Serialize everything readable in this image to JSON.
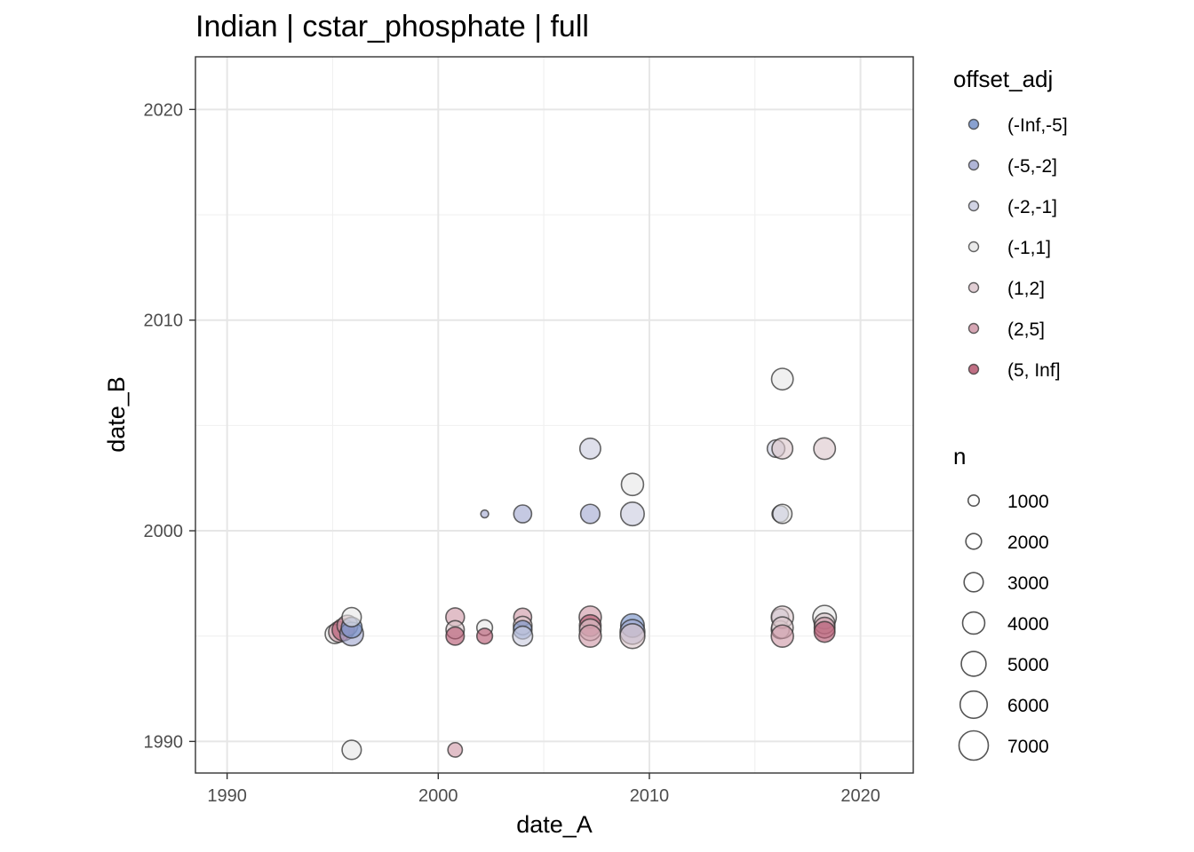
{
  "chart_data": {
    "type": "scatter",
    "title": "Indian | cstar_phosphate | full",
    "xlabel": "date_A",
    "ylabel": "date_B",
    "xlim": [
      1988.5,
      2022.5
    ],
    "ylim": [
      1988.5,
      2022.5
    ],
    "x_ticks": [
      1990,
      2000,
      2010,
      2020
    ],
    "y_ticks": [
      1990,
      2000,
      2010,
      2020
    ],
    "x_tick_labels": [
      "1990",
      "2000",
      "2010",
      "2020"
    ],
    "y_tick_labels": [
      "1990",
      "2000",
      "2010",
      "2020"
    ],
    "grid": true,
    "legend_position": "right",
    "color_legend": {
      "title": "offset_adj",
      "entries": [
        {
          "label": "(-Inf,-5]",
          "color": "#7490c8"
        },
        {
          "label": "(-5,-2]",
          "color": "#a2a8d0"
        },
        {
          "label": "(-2,-1]",
          "color": "#c9cbdf"
        },
        {
          "label": "(-1,1]",
          "color": "#e6e6e6"
        },
        {
          "label": "(1,2]",
          "color": "#dcc6cc"
        },
        {
          "label": "(2,5]",
          "color": "#cf97a7"
        },
        {
          "label": "(5, Inf]",
          "color": "#b5566f"
        }
      ]
    },
    "size_legend": {
      "title": "n",
      "entries": [
        {
          "label": "1000",
          "value": 1000
        },
        {
          "label": "2000",
          "value": 2000
        },
        {
          "label": "3000",
          "value": 3000
        },
        {
          "label": "4000",
          "value": 4000
        },
        {
          "label": "5000",
          "value": 5000
        },
        {
          "label": "6000",
          "value": 6000
        },
        {
          "label": "7000",
          "value": 7000
        }
      ]
    },
    "points": [
      {
        "x": 1995.1,
        "y": 1995.1,
        "n": 3000,
        "offset": "(-1,1]"
      },
      {
        "x": 1995.3,
        "y": 1995.2,
        "n": 3500,
        "offset": "(2,5]"
      },
      {
        "x": 1995.5,
        "y": 1995.3,
        "n": 4000,
        "offset": "(5, Inf]"
      },
      {
        "x": 1995.7,
        "y": 1995.5,
        "n": 3500,
        "offset": "(2,5]"
      },
      {
        "x": 1995.9,
        "y": 1995.1,
        "n": 4500,
        "offset": "(-5,-2]"
      },
      {
        "x": 1995.9,
        "y": 1995.4,
        "n": 3500,
        "offset": "(-Inf,-5]"
      },
      {
        "x": 1995.9,
        "y": 1995.9,
        "n": 3000,
        "offset": "(-1,1]"
      },
      {
        "x": 1995.9,
        "y": 1989.6,
        "n": 3000,
        "offset": "(-1,1]"
      },
      {
        "x": 2000.8,
        "y": 1995.9,
        "n": 2800,
        "offset": "(2,5]"
      },
      {
        "x": 2000.8,
        "y": 1995.3,
        "n": 2700,
        "offset": "(1,2]"
      },
      {
        "x": 2000.8,
        "y": 1995.0,
        "n": 2700,
        "offset": "(5, Inf]"
      },
      {
        "x": 2000.8,
        "y": 1989.6,
        "n": 1700,
        "offset": "(2,5]"
      },
      {
        "x": 2002.2,
        "y": 2000.8,
        "n": 500,
        "offset": "(-5,-2]"
      },
      {
        "x": 2002.2,
        "y": 1995.4,
        "n": 2000,
        "offset": "(-1,1]"
      },
      {
        "x": 2002.2,
        "y": 1995.0,
        "n": 2000,
        "offset": "(5, Inf]"
      },
      {
        "x": 2004.0,
        "y": 2000.8,
        "n": 2600,
        "offset": "(-5,-2]"
      },
      {
        "x": 2004.0,
        "y": 1995.9,
        "n": 2600,
        "offset": "(2,5]"
      },
      {
        "x": 2004.0,
        "y": 1995.5,
        "n": 2800,
        "offset": "(1,2]"
      },
      {
        "x": 2004.0,
        "y": 1995.3,
        "n": 2800,
        "offset": "(-Inf,-5]"
      },
      {
        "x": 2004.0,
        "y": 1995.0,
        "n": 3200,
        "offset": "(-2,-1]"
      },
      {
        "x": 2007.2,
        "y": 2003.9,
        "n": 3500,
        "offset": "(-2,-1]"
      },
      {
        "x": 2007.2,
        "y": 2000.8,
        "n": 3000,
        "offset": "(-5,-2]"
      },
      {
        "x": 2007.2,
        "y": 1995.9,
        "n": 4000,
        "offset": "(2,5]"
      },
      {
        "x": 2007.2,
        "y": 1995.5,
        "n": 3800,
        "offset": "(5, Inf]"
      },
      {
        "x": 2007.2,
        "y": 1995.3,
        "n": 3800,
        "offset": "(1,2]"
      },
      {
        "x": 2007.2,
        "y": 1995.0,
        "n": 4000,
        "offset": "(2,5]"
      },
      {
        "x": 2009.2,
        "y": 2002.2,
        "n": 4000,
        "offset": "(-1,1]"
      },
      {
        "x": 2009.2,
        "y": 2000.8,
        "n": 4500,
        "offset": "(-2,-1]"
      },
      {
        "x": 2009.2,
        "y": 1995.5,
        "n": 4500,
        "offset": "(-Inf,-5]"
      },
      {
        "x": 2009.2,
        "y": 1995.2,
        "n": 5000,
        "offset": "(-5,-2]"
      },
      {
        "x": 2009.2,
        "y": 1995.0,
        "n": 5000,
        "offset": "(1,2]"
      },
      {
        "x": 2016.0,
        "y": 2003.9,
        "n": 2500,
        "offset": "(-2,-1]"
      },
      {
        "x": 2016.2,
        "y": 2000.8,
        "n": 2200,
        "offset": "(-5,-2]"
      },
      {
        "x": 2016.2,
        "y": 1995.9,
        "n": 2300,
        "offset": "(-2,-1]"
      },
      {
        "x": 2016.2,
        "y": 1995.3,
        "n": 2600,
        "offset": "(-1,1]"
      },
      {
        "x": 2016.3,
        "y": 2007.2,
        "n": 3800,
        "offset": "(-1,1]"
      },
      {
        "x": 2016.3,
        "y": 2003.9,
        "n": 3500,
        "offset": "(1,2]"
      },
      {
        "x": 2016.3,
        "y": 2000.8,
        "n": 3000,
        "offset": "(-1,1]"
      },
      {
        "x": 2016.3,
        "y": 1995.9,
        "n": 4000,
        "offset": "(1,2]"
      },
      {
        "x": 2016.3,
        "y": 1995.4,
        "n": 3800,
        "offset": "(1,2]"
      },
      {
        "x": 2016.3,
        "y": 1995.0,
        "n": 4000,
        "offset": "(2,5]"
      },
      {
        "x": 2018.3,
        "y": 2003.9,
        "n": 3800,
        "offset": "(1,2]"
      },
      {
        "x": 2018.3,
        "y": 1995.9,
        "n": 4500,
        "offset": "(-1,1]"
      },
      {
        "x": 2018.3,
        "y": 1995.6,
        "n": 3500,
        "offset": "(1,2]"
      },
      {
        "x": 2018.3,
        "y": 1995.4,
        "n": 3500,
        "offset": "(2,5]"
      },
      {
        "x": 2018.3,
        "y": 1995.2,
        "n": 3500,
        "offset": "(5, Inf]"
      }
    ]
  }
}
